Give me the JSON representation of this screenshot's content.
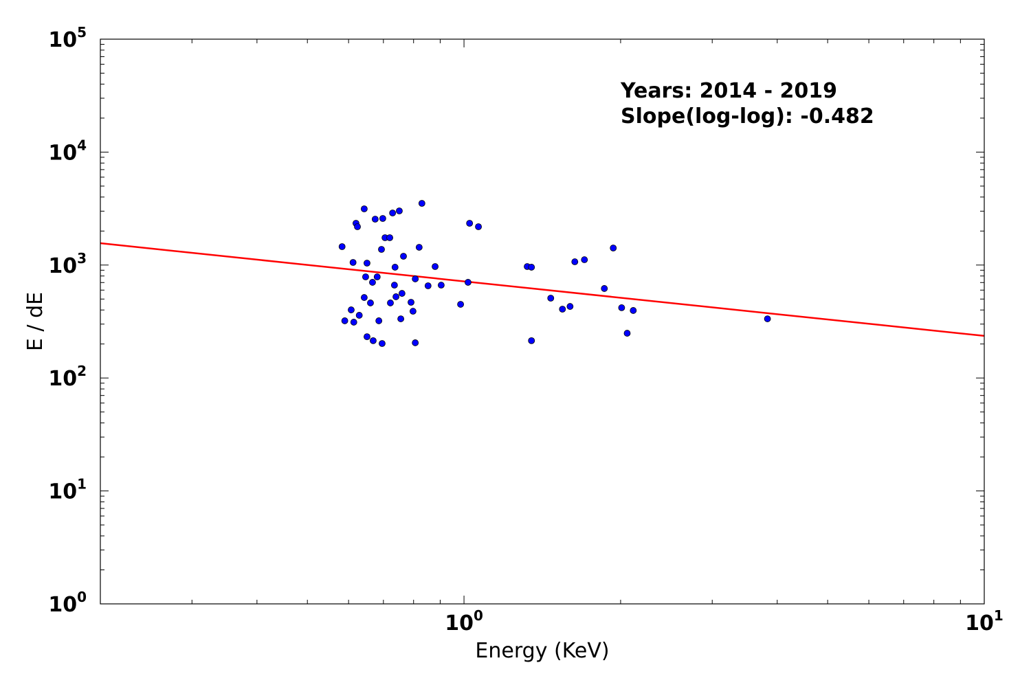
{
  "chart_data": {
    "type": "scatter",
    "title": "",
    "xlabel": "Energy (KeV)",
    "ylabel": "E / dE",
    "xscale": "log",
    "yscale": "log",
    "xlim": [
      0.2,
      10
    ],
    "ylim": [
      1,
      100000
    ],
    "x_ticks": [
      {
        "base": "10",
        "exp": "0",
        "value": 1
      },
      {
        "base": "10",
        "exp": "1",
        "value": 10
      }
    ],
    "y_ticks": [
      {
        "base": "10",
        "exp": "0",
        "value": 1
      },
      {
        "base": "10",
        "exp": "1",
        "value": 10
      },
      {
        "base": "10",
        "exp": "2",
        "value": 100
      },
      {
        "base": "10",
        "exp": "3",
        "value": 1000
      },
      {
        "base": "10",
        "exp": "4",
        "value": 10000
      },
      {
        "base": "10",
        "exp": "5",
        "value": 100000
      }
    ],
    "grid": false,
    "annotation": {
      "line1": "Years: 2014 - 2019",
      "line2": "Slope(log-log): -0.482"
    },
    "point_color": "#0000ff",
    "fit_color": "#ff0000",
    "fit_line": {
      "slope": -0.482,
      "x": [
        0.2,
        10
      ],
      "y": [
        1560,
        236
      ]
    },
    "points": [
      [
        0.583,
        1455
      ],
      [
        0.59,
        321
      ],
      [
        0.607,
        401
      ],
      [
        0.612,
        1055
      ],
      [
        0.614,
        312
      ],
      [
        0.62,
        2344
      ],
      [
        0.624,
        2185
      ],
      [
        0.629,
        359
      ],
      [
        0.643,
        3145
      ],
      [
        0.643,
        516
      ],
      [
        0.647,
        786
      ],
      [
        0.651,
        232
      ],
      [
        0.651,
        1040
      ],
      [
        0.661,
        462
      ],
      [
        0.667,
        703
      ],
      [
        0.669,
        214
      ],
      [
        0.675,
        2548
      ],
      [
        0.681,
        786
      ],
      [
        0.686,
        321
      ],
      [
        0.694,
        1376
      ],
      [
        0.696,
        202
      ],
      [
        0.698,
        2585
      ],
      [
        0.705,
        1746
      ],
      [
        0.72,
        1746
      ],
      [
        0.722,
        462
      ],
      [
        0.729,
        2891
      ],
      [
        0.735,
        664
      ],
      [
        0.737,
        957
      ],
      [
        0.74,
        524
      ],
      [
        0.751,
        3015
      ],
      [
        0.756,
        334
      ],
      [
        0.76,
        561
      ],
      [
        0.765,
        1196
      ],
      [
        0.791,
        468
      ],
      [
        0.798,
        390
      ],
      [
        0.806,
        754
      ],
      [
        0.806,
        205
      ],
      [
        0.82,
        1436
      ],
      [
        0.83,
        3517
      ],
      [
        0.853,
        655
      ],
      [
        0.88,
        970
      ],
      [
        0.904,
        664
      ],
      [
        0.985,
        449
      ],
      [
        1.018,
        703
      ],
      [
        1.025,
        2344
      ],
      [
        1.066,
        2185
      ],
      [
        1.323,
        970
      ],
      [
        1.348,
        957
      ],
      [
        1.348,
        214
      ],
      [
        1.468,
        509
      ],
      [
        1.546,
        407
      ],
      [
        1.599,
        430
      ],
      [
        1.633,
        1069
      ],
      [
        1.704,
        1115
      ],
      [
        1.861,
        620
      ],
      [
        1.936,
        1415
      ],
      [
        2.009,
        419
      ],
      [
        2.059,
        249
      ],
      [
        2.115,
        396
      ],
      [
        3.831,
        334
      ]
    ]
  }
}
